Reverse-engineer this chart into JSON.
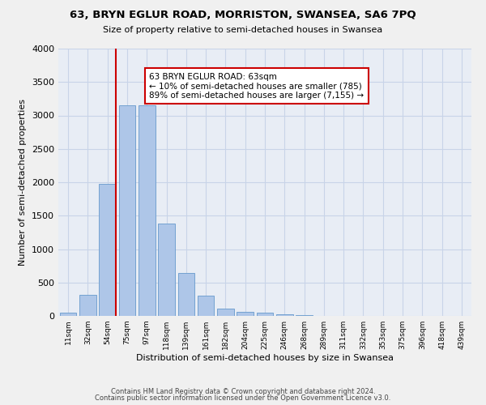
{
  "title": "63, BRYN EGLUR ROAD, MORRISTON, SWANSEA, SA6 7PQ",
  "subtitle": "Size of property relative to semi-detached houses in Swansea",
  "xlabel": "Distribution of semi-detached houses by size in Swansea",
  "ylabel": "Number of semi-detached properties",
  "bar_categories": [
    "11sqm",
    "32sqm",
    "54sqm",
    "75sqm",
    "97sqm",
    "118sqm",
    "139sqm",
    "161sqm",
    "182sqm",
    "204sqm",
    "225sqm",
    "246sqm",
    "268sqm",
    "289sqm",
    "311sqm",
    "332sqm",
    "353sqm",
    "375sqm",
    "396sqm",
    "418sqm",
    "439sqm"
  ],
  "bar_values": [
    50,
    315,
    1980,
    3150,
    3150,
    1380,
    640,
    300,
    105,
    65,
    45,
    20,
    10,
    5,
    5,
    3,
    2,
    2,
    3,
    1,
    1
  ],
  "bar_color": "#aec6e8",
  "bar_edge_color": "#6699cc",
  "annotation_text": "63 BRYN EGLUR ROAD: 63sqm\n← 10% of semi-detached houses are smaller (785)\n89% of semi-detached houses are larger (7,155) →",
  "annotation_box_color": "#cc0000",
  "ylim": [
    0,
    4000
  ],
  "yticks": [
    0,
    500,
    1000,
    1500,
    2000,
    2500,
    3000,
    3500,
    4000
  ],
  "grid_color": "#c8d4e8",
  "background_color": "#e8edf5",
  "fig_background_color": "#f0f0f0",
  "footer_line1": "Contains HM Land Registry data © Crown copyright and database right 2024.",
  "footer_line2": "Contains public sector information licensed under the Open Government Licence v3.0."
}
